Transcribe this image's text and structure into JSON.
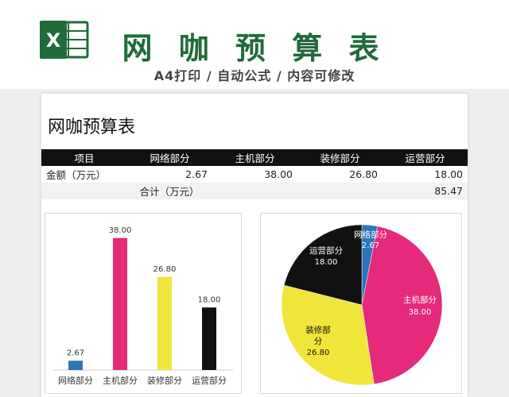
{
  "banner": {
    "logo_letter": "X",
    "title": "网 咖 预 算 表",
    "subtitle": "A4打印 / 自动公式 / 内容可修改"
  },
  "sheet": {
    "title": "网咖预算表",
    "table": {
      "headers": [
        "项目",
        "网络部分",
        "主机部分",
        "装修部分",
        "运营部分"
      ],
      "row": {
        "label": "金额（万元）",
        "values": [
          "2.67",
          "38.00",
          "26.80",
          "18.00"
        ]
      },
      "total": {
        "label": "合计（万元）",
        "value": "85.47"
      }
    }
  },
  "colors": {
    "brand_green": "#1f6b3a",
    "network": "#2e74b8",
    "host": "#e5297b",
    "decoration": "#f0e53a",
    "operations": "#111111"
  },
  "chart_data": [
    {
      "type": "bar",
      "categories": [
        "网络部分",
        "主机部分",
        "装修部分",
        "运营部分"
      ],
      "values": [
        2.67,
        38.0,
        26.8,
        18.0
      ],
      "value_labels": [
        "2.67",
        "38.00",
        "26.80",
        "18.00"
      ],
      "colors": [
        "#2e74b8",
        "#e5297b",
        "#f0e53a",
        "#111111"
      ],
      "ylim": [
        0,
        40
      ]
    },
    {
      "type": "pie",
      "labels": [
        "网络部分",
        "主机部分",
        "装修部分",
        "运营部分"
      ],
      "values": [
        2.67,
        38.0,
        26.8,
        18.0
      ],
      "value_labels": [
        "2.67",
        "38.00",
        "26.80",
        "18.00"
      ],
      "colors": [
        "#2e74b8",
        "#e5297b",
        "#f0e53a",
        "#111111"
      ]
    }
  ]
}
